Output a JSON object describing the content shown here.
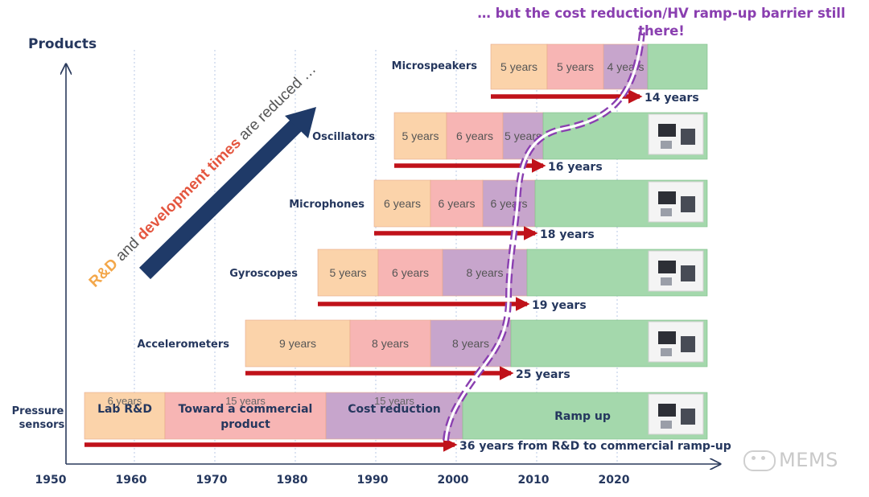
{
  "chart_data": {
    "type": "timeline",
    "y_axis_title": "Products",
    "x_ticks": [
      "1950",
      "1960",
      "1970",
      "1980",
      "1990",
      "2000",
      "2010",
      "2020"
    ],
    "tick_years": [
      1950,
      1960,
      1970,
      1980,
      1990,
      2000,
      2010,
      2020
    ],
    "x_range": [
      1950,
      2032
    ],
    "colors": {
      "rnd": "#fbd3aa",
      "toward": "#f7b5b4",
      "cost": "#c7a5cc",
      "ramp": "#a4d8ac",
      "arrow": "#c0121a",
      "barrier": "#8a3fb0",
      "diag": "#1f3a68"
    },
    "headline": "… but the cost reduction/HV ramp-up  barrier still there!",
    "diagonal_text": {
      "a": "R&D",
      "b": " and ",
      "c": "development times",
      "d": " are reduced …"
    },
    "products": [
      {
        "name": "Pressure sensors",
        "name_lines": [
          "Pressure",
          "sensors"
        ],
        "start": 1954,
        "phases": [
          {
            "years": 6,
            "label": "6 years",
            "sub": "Lab R&D",
            "type": "rnd",
            "end": 1964
          },
          {
            "years": 15,
            "label": "15 years",
            "sub": "Toward a commercial product",
            "type": "toward",
            "end": 1984
          },
          {
            "years": 15,
            "label": "15 years",
            "sub": "Cost reduction",
            "type": "cost",
            "end": 2001
          }
        ],
        "ramp_label": "Ramp up",
        "total": "36 years from R&D to commercial ramp-up",
        "total_years": 36,
        "arrow_end": 2000
      },
      {
        "name": "Accelerometers",
        "name_lines": [
          "Accelerometers"
        ],
        "start": 1974,
        "phases": [
          {
            "years": 9,
            "label": "9 years",
            "type": "rnd",
            "end": 1987
          },
          {
            "years": 8,
            "label": "8 years",
            "type": "toward",
            "end": 1997
          },
          {
            "years": 8,
            "label": "8 years",
            "type": "cost",
            "end": 2007
          }
        ],
        "total": "25 years",
        "total_years": 25,
        "arrow_end": 2007
      },
      {
        "name": "Gyroscopes",
        "name_lines": [
          "Gyroscopes"
        ],
        "start": 1983,
        "phases": [
          {
            "years": 5,
            "label": "5 years",
            "type": "rnd",
            "end": 1990.5
          },
          {
            "years": 6,
            "label": "6 years",
            "type": "toward",
            "end": 1998.5
          },
          {
            "years": 8,
            "label": "8 years",
            "type": "cost",
            "end": 2009
          }
        ],
        "total": "19 years",
        "total_years": 19,
        "arrow_end": 2009
      },
      {
        "name": "Microphones",
        "name_lines": [
          "Microphones"
        ],
        "start": 1990,
        "phases": [
          {
            "years": 6,
            "label": "6 years",
            "type": "rnd",
            "end": 1997
          },
          {
            "years": 6,
            "label": "6 years",
            "type": "toward",
            "end": 2003.5
          },
          {
            "years": 6,
            "label": "6 years",
            "type": "cost",
            "end": 2010
          }
        ],
        "total": "18 years",
        "total_years": 18,
        "arrow_end": 2010
      },
      {
        "name": "Oscillators",
        "name_lines": [
          "Oscillators"
        ],
        "start": 1992.5,
        "phases": [
          {
            "years": 5,
            "label": "5 years",
            "type": "rnd",
            "end": 1999
          },
          {
            "years": 6,
            "label": "6 years",
            "type": "toward",
            "end": 2006
          },
          {
            "years": 5,
            "label": "5 years",
            "type": "cost",
            "end": 2011
          }
        ],
        "total": "16 years",
        "total_years": 16,
        "arrow_end": 2011
      },
      {
        "name": "Microspeakers",
        "name_lines": [
          "Microspeakers"
        ],
        "start": 2004.5,
        "phases": [
          {
            "years": 5,
            "label": "5 years",
            "type": "rnd",
            "end": 2011.5
          },
          {
            "years": 5,
            "label": "5 years",
            "type": "toward",
            "end": 2018.5
          },
          {
            "years": 4,
            "label": "4 years",
            "type": "cost",
            "end": 2024
          }
        ],
        "total": "14 years",
        "total_years": 14,
        "arrow_end": 2023
      }
    ]
  },
  "watermark": "MEMS"
}
